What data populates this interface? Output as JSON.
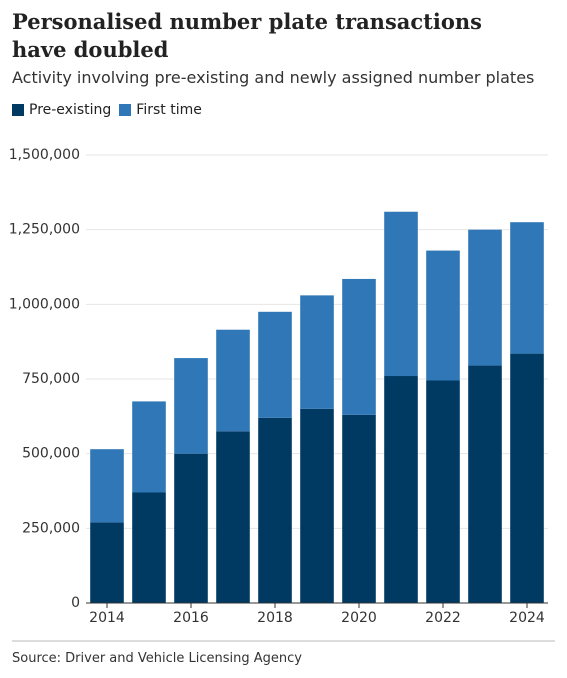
{
  "chart_data": {
    "type": "stacked-bar",
    "title": "Personalised number plate transactions have doubled",
    "subtitle": "Activity involving pre-existing and newly assigned number plates",
    "categories": [
      "2014",
      null,
      "2016",
      null,
      "2018",
      null,
      "2020",
      null,
      "2022",
      null,
      "2024"
    ],
    "series": [
      {
        "name": "Pre-existing",
        "color": "#003a63",
        "values": [
          270000,
          370000,
          500000,
          575000,
          620000,
          650000,
          630000,
          760000,
          745000,
          795000,
          835000
        ]
      },
      {
        "name": "First time",
        "color": "#2f77b6",
        "values": [
          245000,
          305000,
          320000,
          340000,
          355000,
          380000,
          455000,
          550000,
          435000,
          455000,
          440000
        ]
      }
    ],
    "ylim": [
      0,
      1500000
    ],
    "yticks": [
      0,
      {
        "value": 250000,
        "label": "250,000"
      },
      {
        "value": 500000,
        "label": "500,000"
      },
      {
        "value": 750000,
        "label": "750,000"
      },
      {
        "value": 1000000,
        "label": "1,000,000"
      },
      {
        "value": 1250000,
        "label": "1,250,000"
      },
      {
        "value": 1500000,
        "label": "1,500,000"
      }
    ],
    "grid": true,
    "legend": "top-left",
    "source": "Source: Driver and Vehicle Licensing Agency"
  }
}
